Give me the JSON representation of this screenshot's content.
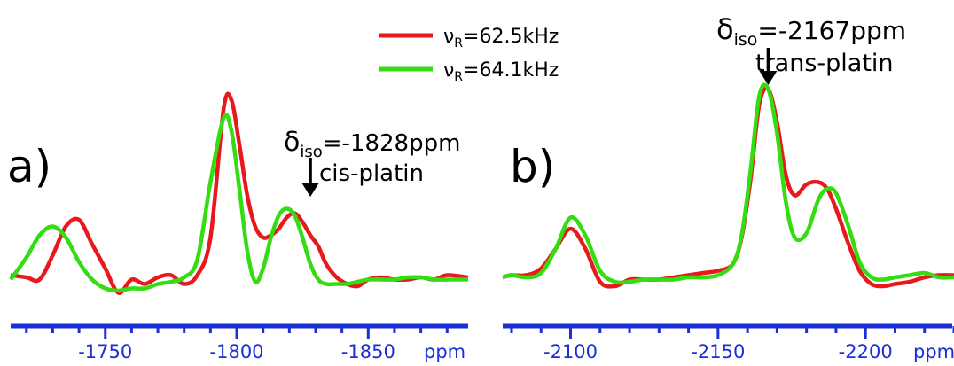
{
  "chart_data": [
    {
      "type": "line",
      "panel_label": "a)",
      "x_unit": "ppm",
      "xlim": [
        -1714,
        -1888
      ],
      "x_ticks": [
        -1750,
        -1800,
        -1850
      ],
      "x_tick_labels": [
        "-1750",
        "-1800",
        "-1850"
      ],
      "annotation": {
        "delta": "δ",
        "sub": "iso",
        "value": "=-1828ppm",
        "compound": "cis-platin",
        "arrow_x": -1828
      },
      "series": [
        {
          "name": "νR=62.5kHz",
          "color": "#e8191c",
          "x": [
            -1714,
            -1720,
            -1725,
            -1730,
            -1735,
            -1740,
            -1745,
            -1750,
            -1755,
            -1760,
            -1765,
            -1770,
            -1775,
            -1780,
            -1785,
            -1790,
            -1795,
            -1798,
            -1801,
            -1804,
            -1807,
            -1810,
            -1813,
            -1816,
            -1819,
            -1822,
            -1825,
            -1828,
            -1831,
            -1834,
            -1838,
            -1842,
            -1846,
            -1850,
            -1855,
            -1860,
            -1865,
            -1870,
            -1875,
            -1880,
            -1888
          ],
          "y": [
            0.03,
            0.02,
            0.01,
            0.12,
            0.25,
            0.28,
            0.17,
            0.06,
            -0.05,
            0.01,
            -0.01,
            0.02,
            0.03,
            -0.01,
            0.03,
            0.2,
            0.78,
            0.82,
            0.62,
            0.39,
            0.25,
            0.2,
            0.21,
            0.24,
            0.29,
            0.31,
            0.27,
            0.21,
            0.16,
            0.08,
            0.02,
            -0.01,
            -0.02,
            0.01,
            0.02,
            0.01,
            0.01,
            0.02,
            0.01,
            0.03,
            0.02
          ]
        },
        {
          "name": "νR=64.1kHz",
          "color": "#33dd11",
          "x": [
            -1714,
            -1720,
            -1725,
            -1730,
            -1735,
            -1740,
            -1745,
            -1750,
            -1755,
            -1760,
            -1765,
            -1770,
            -1775,
            -1780,
            -1785,
            -1790,
            -1795,
            -1798,
            -1801,
            -1804,
            -1807,
            -1810,
            -1813,
            -1816,
            -1819,
            -1822,
            -1825,
            -1828,
            -1831,
            -1834,
            -1838,
            -1842,
            -1846,
            -1850,
            -1855,
            -1860,
            -1865,
            -1870,
            -1875,
            -1880,
            -1888
          ],
          "y": [
            0.01,
            0.11,
            0.21,
            0.25,
            0.2,
            0.09,
            0.01,
            -0.03,
            -0.04,
            -0.03,
            -0.03,
            -0.01,
            0.0,
            0.02,
            0.1,
            0.45,
            0.74,
            0.68,
            0.42,
            0.14,
            0.0,
            0.06,
            0.2,
            0.3,
            0.33,
            0.3,
            0.2,
            0.08,
            0.01,
            -0.01,
            -0.01,
            -0.01,
            0.0,
            0.01,
            0.01,
            0.01,
            0.02,
            0.02,
            0.01,
            0.01,
            0.01
          ]
        }
      ]
    },
    {
      "type": "line",
      "panel_label": "b)",
      "x_unit": "ppm",
      "xlim": [
        -2077,
        -2230
      ],
      "x_ticks": [
        -2100,
        -2150,
        -2200
      ],
      "x_tick_labels": [
        "-2100",
        "-2150",
        "-2200"
      ],
      "annotation": {
        "delta": "δ",
        "sub": "iso",
        "value": "=-2167ppm",
        "compound": "trans-platin",
        "arrow_x": -2167
      },
      "series": [
        {
          "name": "νR=62.5kHz",
          "color": "#e8191c",
          "x": [
            -2077,
            -2080,
            -2085,
            -2090,
            -2095,
            -2100,
            -2105,
            -2110,
            -2115,
            -2120,
            -2125,
            -2130,
            -2135,
            -2140,
            -2145,
            -2150,
            -2155,
            -2158,
            -2161,
            -2164,
            -2167,
            -2170,
            -2173,
            -2176,
            -2180,
            -2184,
            -2187,
            -2190,
            -2194,
            -2198,
            -2202,
            -2206,
            -2210,
            -2215,
            -2220,
            -2225,
            -2230
          ],
          "y": [
            0.02,
            0.03,
            0.03,
            0.06,
            0.15,
            0.24,
            0.15,
            0.0,
            -0.02,
            0.01,
            0.01,
            0.01,
            0.02,
            0.03,
            0.04,
            0.05,
            0.08,
            0.2,
            0.46,
            0.8,
            0.87,
            0.72,
            0.48,
            0.39,
            0.44,
            0.45,
            0.42,
            0.33,
            0.18,
            0.05,
            -0.01,
            -0.02,
            -0.01,
            0.0,
            0.02,
            0.03,
            0.03
          ]
        },
        {
          "name": "νR=64.1kHz",
          "color": "#33dd11",
          "x": [
            -2077,
            -2080,
            -2085,
            -2090,
            -2095,
            -2100,
            -2105,
            -2110,
            -2115,
            -2120,
            -2125,
            -2130,
            -2135,
            -2140,
            -2145,
            -2150,
            -2155,
            -2158,
            -2161,
            -2164,
            -2167,
            -2170,
            -2173,
            -2176,
            -2180,
            -2184,
            -2187,
            -2190,
            -2194,
            -2198,
            -2202,
            -2206,
            -2210,
            -2215,
            -2220,
            -2225,
            -2230
          ],
          "y": [
            0.02,
            0.03,
            0.02,
            0.04,
            0.15,
            0.29,
            0.21,
            0.05,
            0.0,
            0.0,
            0.01,
            0.01,
            0.01,
            0.02,
            0.02,
            0.03,
            0.08,
            0.21,
            0.5,
            0.84,
            0.87,
            0.67,
            0.36,
            0.2,
            0.22,
            0.37,
            0.42,
            0.4,
            0.26,
            0.09,
            0.02,
            0.01,
            0.02,
            0.03,
            0.04,
            0.02,
            0.02
          ]
        }
      ]
    }
  ],
  "legend": {
    "items": [
      {
        "symbol": "ν",
        "sub": "R",
        "value": "=62.5kHz",
        "color": "#e8191c"
      },
      {
        "symbol": "ν",
        "sub": "R",
        "value": "=64.1kHz",
        "color": "#33dd11"
      }
    ]
  },
  "colors": {
    "axis": "#1a2fd6"
  }
}
